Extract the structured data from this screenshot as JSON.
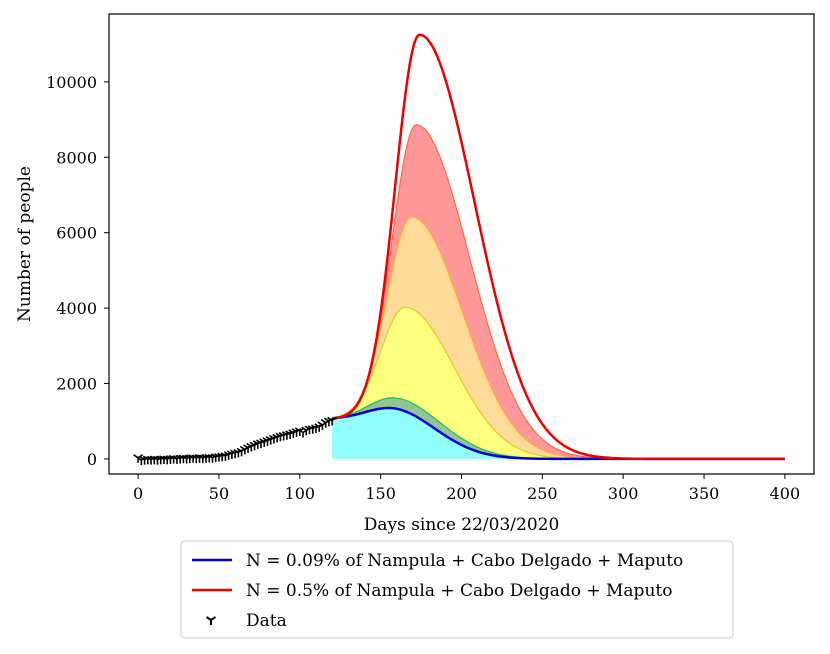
{
  "chart_data": {
    "type": "area",
    "xlabel": "Days since 22/03/2020",
    "ylabel": "Number of people",
    "xlim": [
      -18,
      418
    ],
    "ylim": [
      -400,
      11800
    ],
    "xticks": [
      0,
      50,
      100,
      150,
      200,
      250,
      300,
      350,
      400
    ],
    "yticks": [
      0,
      2000,
      4000,
      6000,
      8000,
      10000
    ],
    "model": {
      "base_day": 120,
      "base_value": 1060,
      "end_day": 400,
      "start_peak_day": 155,
      "end_peak_day": 174,
      "rise_sigma": 15,
      "start_fall_sigma": 28,
      "end_fall_sigma": 34
    },
    "series": [
      {
        "name": "N = 0.09% of Nampula + Cabo Delgado + Maputo",
        "peak_day": 155,
        "peak": 1350,
        "color": "#0000dd",
        "fill": "#77ffff",
        "fill_opacity": 0.8,
        "width": 2.5,
        "in_legend": true
      },
      {
        "name": "",
        "peak_day": 157,
        "peak": 1620,
        "color": "#22bb66",
        "fill": "#4a9e4a",
        "fill_opacity": 0.6,
        "width": 1.2,
        "in_legend": false
      },
      {
        "name": "",
        "peak_day": 165,
        "peak": 4020,
        "color": "#ddcc22",
        "fill": "#ffff00",
        "fill_opacity": 0.5,
        "width": 1.2,
        "in_legend": false
      },
      {
        "name": "",
        "peak_day": 169,
        "peak": 6420,
        "color": "#ffaa33",
        "fill": "#ffa500",
        "fill_opacity": 0.4,
        "width": 1.2,
        "in_legend": false
      },
      {
        "name": "",
        "peak_day": 172,
        "peak": 8860,
        "color": "#ff6644",
        "fill": "#ff0000",
        "fill_opacity": 0.4,
        "width": 1.2,
        "in_legend": false
      },
      {
        "name": "N = 0.5% of Nampula + Cabo Delgado + Maputo",
        "peak_day": 174,
        "peak": 11250,
        "color": "#ee0000",
        "fill": "#ff0000",
        "fill_opacity": 0.0,
        "width": 2.5,
        "in_legend": true
      }
    ],
    "data_points": {
      "name": "Data",
      "marker": "tri_down",
      "color": "#000000",
      "x": [
        0,
        2,
        4,
        6,
        8,
        10,
        12,
        14,
        16,
        18,
        20,
        22,
        24,
        26,
        28,
        30,
        32,
        34,
        36,
        38,
        40,
        42,
        44,
        46,
        48,
        50,
        52,
        54,
        56,
        58,
        60,
        62,
        64,
        66,
        68,
        70,
        72,
        74,
        76,
        78,
        80,
        82,
        84,
        86,
        88,
        90,
        92,
        94,
        96,
        98,
        100,
        102,
        104,
        106,
        108,
        110,
        112,
        114,
        116,
        118,
        120
      ],
      "y": [
        30,
        -30,
        -20,
        -10,
        -20,
        -10,
        -20,
        -10,
        0,
        -10,
        0,
        10,
        0,
        10,
        20,
        10,
        20,
        30,
        20,
        30,
        20,
        30,
        40,
        30,
        50,
        60,
        70,
        80,
        110,
        130,
        150,
        170,
        200,
        250,
        290,
        330,
        360,
        400,
        420,
        450,
        480,
        510,
        540,
        570,
        600,
        620,
        640,
        660,
        690,
        720,
        740,
        700,
        760,
        790,
        800,
        820,
        850,
        900,
        960,
        1000,
        1020
      ]
    },
    "legend": {
      "position": "bottom-center",
      "entries": [
        {
          "label": "N = 0.09% of Nampula + Cabo Delgado + Maputo",
          "kind": "line",
          "color": "#0000dd"
        },
        {
          "label": "N = 0.5% of Nampula + Cabo Delgado + Maputo",
          "kind": "line",
          "color": "#ee0000"
        },
        {
          "label": "Data",
          "kind": "marker",
          "color": "#000000"
        }
      ]
    },
    "grid": false
  }
}
